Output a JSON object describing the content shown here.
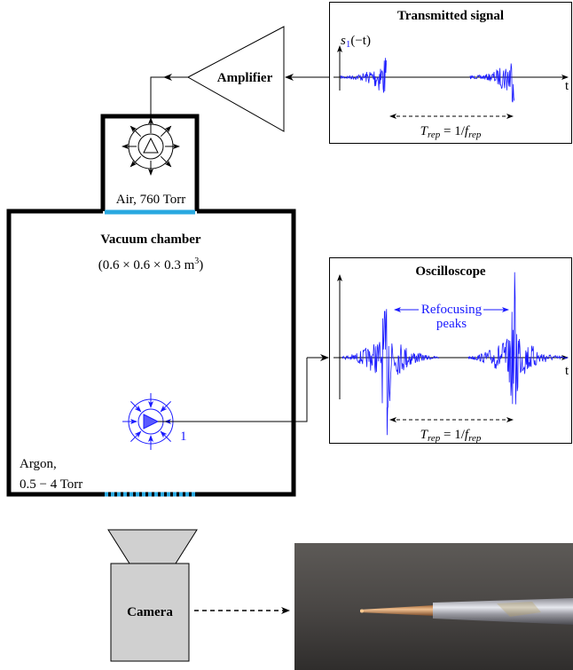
{
  "transmitter": {
    "title": "Transmitted signal",
    "signal_label": [
      "s",
      "1",
      "(−t)"
    ],
    "time_axis": "t",
    "period": [
      "T",
      "rep",
      " = 1/",
      "f",
      "rep"
    ]
  },
  "amplifier": "Amplifier",
  "air_chamber": "Air, 760 Torr",
  "vacuum_chamber": {
    "title": "Vacuum chamber",
    "size": [
      "(0.6 × 0.6 × 0.3 m",
      "3",
      ")"
    ]
  },
  "receiver_label": "1",
  "argon": [
    "Argon,",
    "0.5 − 4 Torr"
  ],
  "oscilloscope": {
    "title": "Oscilloscope",
    "annotation": [
      "Refocusing",
      "peaks"
    ],
    "time_axis": "t",
    "period": [
      "T",
      "rep",
      " = 1/",
      "f",
      "rep"
    ]
  },
  "camera": "Camera"
}
